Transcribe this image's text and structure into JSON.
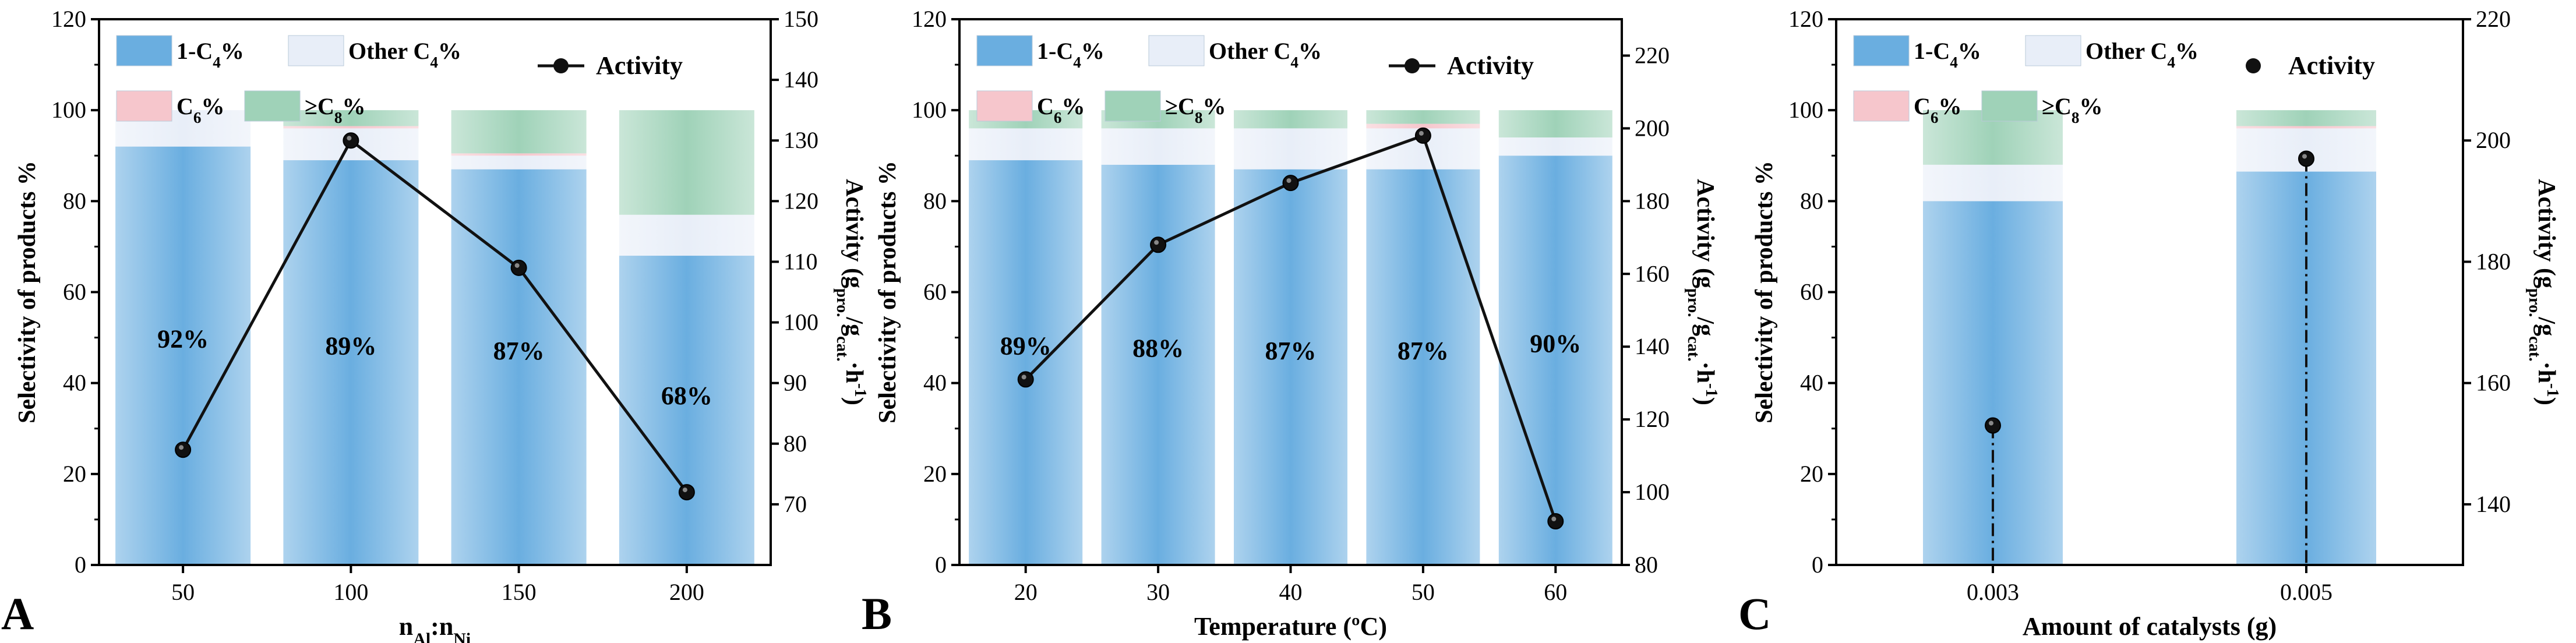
{
  "chart_data": [
    {
      "type": "bar",
      "panel_label": "A",
      "xlabel": {
        "base": "n",
        "sub1": "Al",
        "sep": ":n",
        "sub2": "Ni"
      },
      "ylabel": "Selectivity of products %",
      "y2label": {
        "base": "Activity (g",
        "sub1": "pro.",
        "mid": "/g",
        "sub2": "cat.",
        "unit": "·h",
        "sup": "-1",
        "end": ")"
      },
      "ylim": [
        0,
        120
      ],
      "yticks": [
        0,
        20,
        40,
        60,
        80,
        100,
        120
      ],
      "y2lim": [
        60,
        150
      ],
      "y2ticks": [
        70,
        80,
        90,
        100,
        110,
        120,
        130,
        140,
        150
      ],
      "categories": [
        "50",
        "100",
        "150",
        "200"
      ],
      "series": [
        {
          "name": "1-C4%",
          "values": [
            92,
            89,
            87,
            68
          ]
        },
        {
          "name": "Other C4%",
          "values": [
            8,
            7,
            3,
            9
          ]
        },
        {
          "name": "C6%",
          "values": [
            0,
            0.5,
            0.5,
            0
          ]
        },
        {
          "name": "≥C8%",
          "values": [
            0,
            3.5,
            9.5,
            23
          ]
        }
      ],
      "bar_labels": [
        "92%",
        "89%",
        "87%",
        "68%"
      ],
      "activity": {
        "name": "Activity",
        "values": [
          79,
          130,
          109,
          72
        ],
        "style": "line"
      }
    },
    {
      "type": "bar",
      "panel_label": "B",
      "xlabel": {
        "text": "Temperature (ºC)"
      },
      "ylabel": "Selectivity of products %",
      "y2label": {
        "base": "Activity (g",
        "sub1": "pro.",
        "mid": "/g",
        "sub2": "cat.",
        "unit": "·h",
        "sup": "-1",
        "end": ")"
      },
      "ylim": [
        0,
        120
      ],
      "yticks": [
        0,
        20,
        40,
        60,
        80,
        100,
        120
      ],
      "y2lim": [
        80,
        230
      ],
      "y2ticks": [
        80,
        100,
        120,
        140,
        160,
        180,
        200,
        220
      ],
      "categories": [
        "20",
        "30",
        "40",
        "50",
        "60"
      ],
      "series": [
        {
          "name": "1-C4%",
          "values": [
            89,
            88,
            87,
            87,
            90
          ]
        },
        {
          "name": "Other C4%",
          "values": [
            7,
            8,
            9,
            9,
            4
          ]
        },
        {
          "name": "C6%",
          "values": [
            0,
            0,
            0,
            1,
            0
          ]
        },
        {
          "name": "≥C8%",
          "values": [
            4,
            4,
            4,
            3,
            6
          ]
        }
      ],
      "bar_labels": [
        "89%",
        "88%",
        "87%",
        "87%",
        "90%"
      ],
      "activity": {
        "name": "Activity",
        "values": [
          131,
          168,
          185,
          198,
          92
        ],
        "style": "line"
      }
    },
    {
      "type": "bar",
      "panel_label": "C",
      "xlabel": {
        "text": "Amount of catalysts (g)"
      },
      "ylabel": "Selectivity of products %",
      "y2label": {
        "base": "Activity (g",
        "sub1": "pro.",
        "mid": "/g",
        "sub2": "cat.",
        "unit": "·h",
        "sup": "-1",
        "end": ")"
      },
      "ylim": [
        0,
        120
      ],
      "yticks": [
        0,
        20,
        40,
        60,
        80,
        100,
        120
      ],
      "y2lim": [
        130,
        220
      ],
      "y2ticks": [
        140,
        160,
        180,
        200,
        220
      ],
      "categories": [
        "0.003",
        "0.005"
      ],
      "series": [
        {
          "name": "1-C4%",
          "values": [
            80,
            86.5
          ]
        },
        {
          "name": "Other C4%",
          "values": [
            8,
            9.5
          ]
        },
        {
          "name": "C6%",
          "values": [
            0,
            0.5
          ]
        },
        {
          "name": "≥C8%",
          "values": [
            12,
            3.5
          ]
        }
      ],
      "bar_labels": [],
      "activity": {
        "name": "Activity",
        "values": [
          153,
          197
        ],
        "style": "drop"
      }
    }
  ],
  "legend": {
    "c4_base": "1-C",
    "c4_sub": "4",
    "c4_end": "%",
    "other_base": "Other C",
    "other_sub": "4",
    "other_end": "%",
    "c6_base": "C",
    "c6_sub": "6",
    "c6_end": "%",
    "c8_base": "≥C",
    "c8_sub": "8",
    "c8_end": "%",
    "activity": "Activity"
  },
  "colors": {
    "c4": "#6aaee0",
    "other": "#e8eef8",
    "c6": "#f6c6cc",
    "c8": "#9fd2b8",
    "line": "#111111",
    "axis": "#000000"
  }
}
